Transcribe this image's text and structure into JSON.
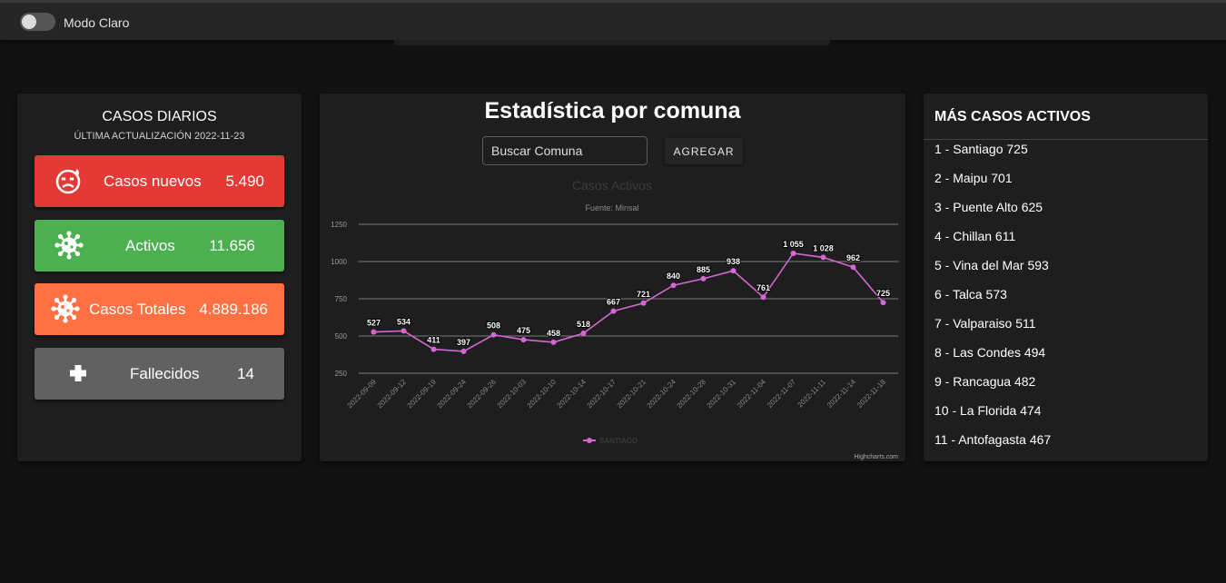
{
  "header": {
    "mode_label": "Modo Claro"
  },
  "daily": {
    "title": "CASOS DIARIOS",
    "updated": "ÚLTIMA ACTUALIZACIÓN 2022-11-23",
    "cards": [
      {
        "label": "Casos nuevos",
        "value": "5.490",
        "icon": "sick-face-icon",
        "color": "#e53935"
      },
      {
        "label": "Activos",
        "value": "11.656",
        "icon": "virus-icon",
        "color": "#4caf50"
      },
      {
        "label": "Casos Totales",
        "value": "4.889.186",
        "icon": "virus-icon",
        "color": "#ff7043"
      },
      {
        "label": "Fallecidos",
        "value": "14",
        "icon": "plus-cross-icon",
        "color": "#616161"
      }
    ]
  },
  "comuna": {
    "heading": "Estadística por comuna",
    "search_placeholder": "Buscar Comuna",
    "add_label": "AGREGAR"
  },
  "chart_data": {
    "type": "line",
    "title": "Casos Activos",
    "subtitle": "Fuente: Minsal",
    "credit": "Highcharts.com",
    "categories": [
      "2022-09-09",
      "2022-09-12",
      "2022-09-19",
      "2022-09-24",
      "2022-09-26",
      "2022-10-03",
      "2022-10-10",
      "2022-10-14",
      "2022-10-17",
      "2022-10-21",
      "2022-10-24",
      "2022-10-28",
      "2022-10-31",
      "2022-11-04",
      "2022-11-07",
      "2022-11-11",
      "2022-11-14",
      "2022-11-18"
    ],
    "y_ticks": [
      250,
      500,
      750,
      1000,
      1250
    ],
    "ylim": [
      250,
      1250
    ],
    "grid": true,
    "legend": "bottom-center",
    "series": [
      {
        "name": "SANTIAGO",
        "color": "#d665d6",
        "values": [
          527,
          534,
          411,
          397,
          508,
          475,
          458,
          518,
          667,
          721,
          840,
          885,
          938,
          761,
          1055,
          1028,
          962,
          725
        ],
        "labels": [
          "527",
          "534",
          "411",
          "397",
          "508",
          "475",
          "458",
          "518",
          "667",
          "721",
          "840",
          "885",
          "938",
          "761",
          "1 055",
          "1 028",
          "962",
          "725"
        ]
      }
    ]
  },
  "ranking": {
    "title": "MÁS CASOS ACTIVOS",
    "items": [
      "1 - Santiago 725",
      "2 - Maipu 701",
      "3 - Puente Alto 625",
      "4 - Chillan 611",
      "5 - Vina del Mar 593",
      "6 - Talca 573",
      "7 - Valparaiso 511",
      "8 - Las Condes 494",
      "9 - Rancagua 482",
      "10 - La Florida 474",
      "11 - Antofagasta 467"
    ]
  }
}
